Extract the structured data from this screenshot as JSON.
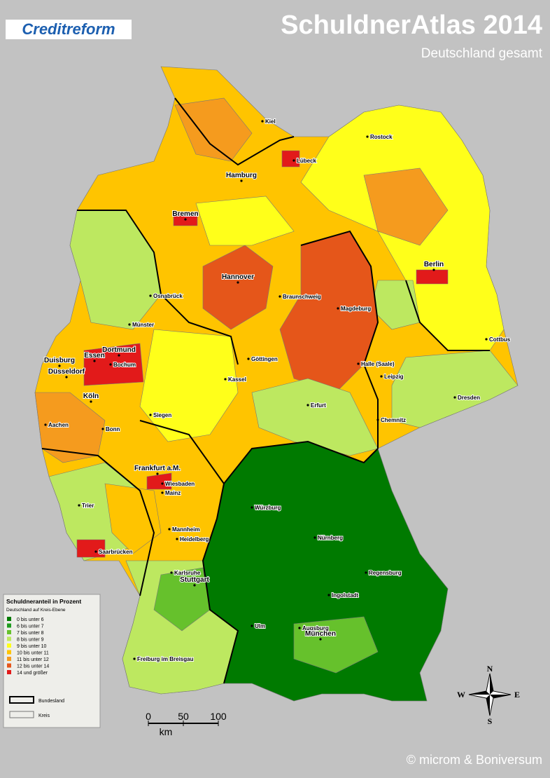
{
  "header": {
    "logo": "Creditreform",
    "title": "SchuldnerAtlas 2014",
    "subtitle": "Deutschland gesamt"
  },
  "cities": [
    "Kiel",
    "Lübeck",
    "Rostock",
    "Hamburg",
    "Bremen",
    "Hannover",
    "Berlin",
    "Osnabrück",
    "Braunschweig",
    "Magdeburg",
    "Münster",
    "Dortmund",
    "Essen",
    "Bochum",
    "Duisburg",
    "Düsseldorf",
    "Köln",
    "Göttingen",
    "Kassel",
    "Halle (Saale)",
    "Leipzig",
    "Cottbus",
    "Dresden",
    "Erfurt",
    "Chemnitz",
    "Aachen",
    "Bonn",
    "Siegen",
    "Frankfurt a.M.",
    "Wiesbaden",
    "Mainz",
    "Trier",
    "Würzburg",
    "Nürnberg",
    "Mannheim",
    "Heidelberg",
    "Saarbrücken",
    "Karlsruhe",
    "Stuttgart",
    "Regensburg",
    "Ingolstadt",
    "Ulm",
    "Augsburg",
    "München",
    "Freiburg im Breisgau"
  ],
  "legend": {
    "title": "Schuldneranteil in Prozent",
    "subtitle": "Deutschland auf Kreis-Ebene",
    "items": [
      {
        "label": "0 bis unter  6",
        "color": "#007a00"
      },
      {
        "label": "6 bis unter  7",
        "color": "#1f9c1f"
      },
      {
        "label": "7 bis unter  8",
        "color": "#66c12c"
      },
      {
        "label": "8 bis unter  9",
        "color": "#bde860"
      },
      {
        "label": "9 bis unter 10",
        "color": "#ffff1a"
      },
      {
        "label": "10 bis unter 11",
        "color": "#ffc400"
      },
      {
        "label": "11 bis unter 12",
        "color": "#f59b1e"
      },
      {
        "label": "12 bis unter 14",
        "color": "#e5561a"
      },
      {
        "label": "14 und größer",
        "color": "#e21a1a"
      }
    ],
    "borders": [
      "Bundesland",
      "Kreis"
    ]
  },
  "scale": {
    "ticks": [
      "0",
      "50",
      "100"
    ],
    "unit": "km"
  },
  "compass": {
    "n": "N",
    "e": "E",
    "s": "S",
    "w": "W"
  },
  "footer": {
    "copyright": "© microm & Boniversum"
  }
}
